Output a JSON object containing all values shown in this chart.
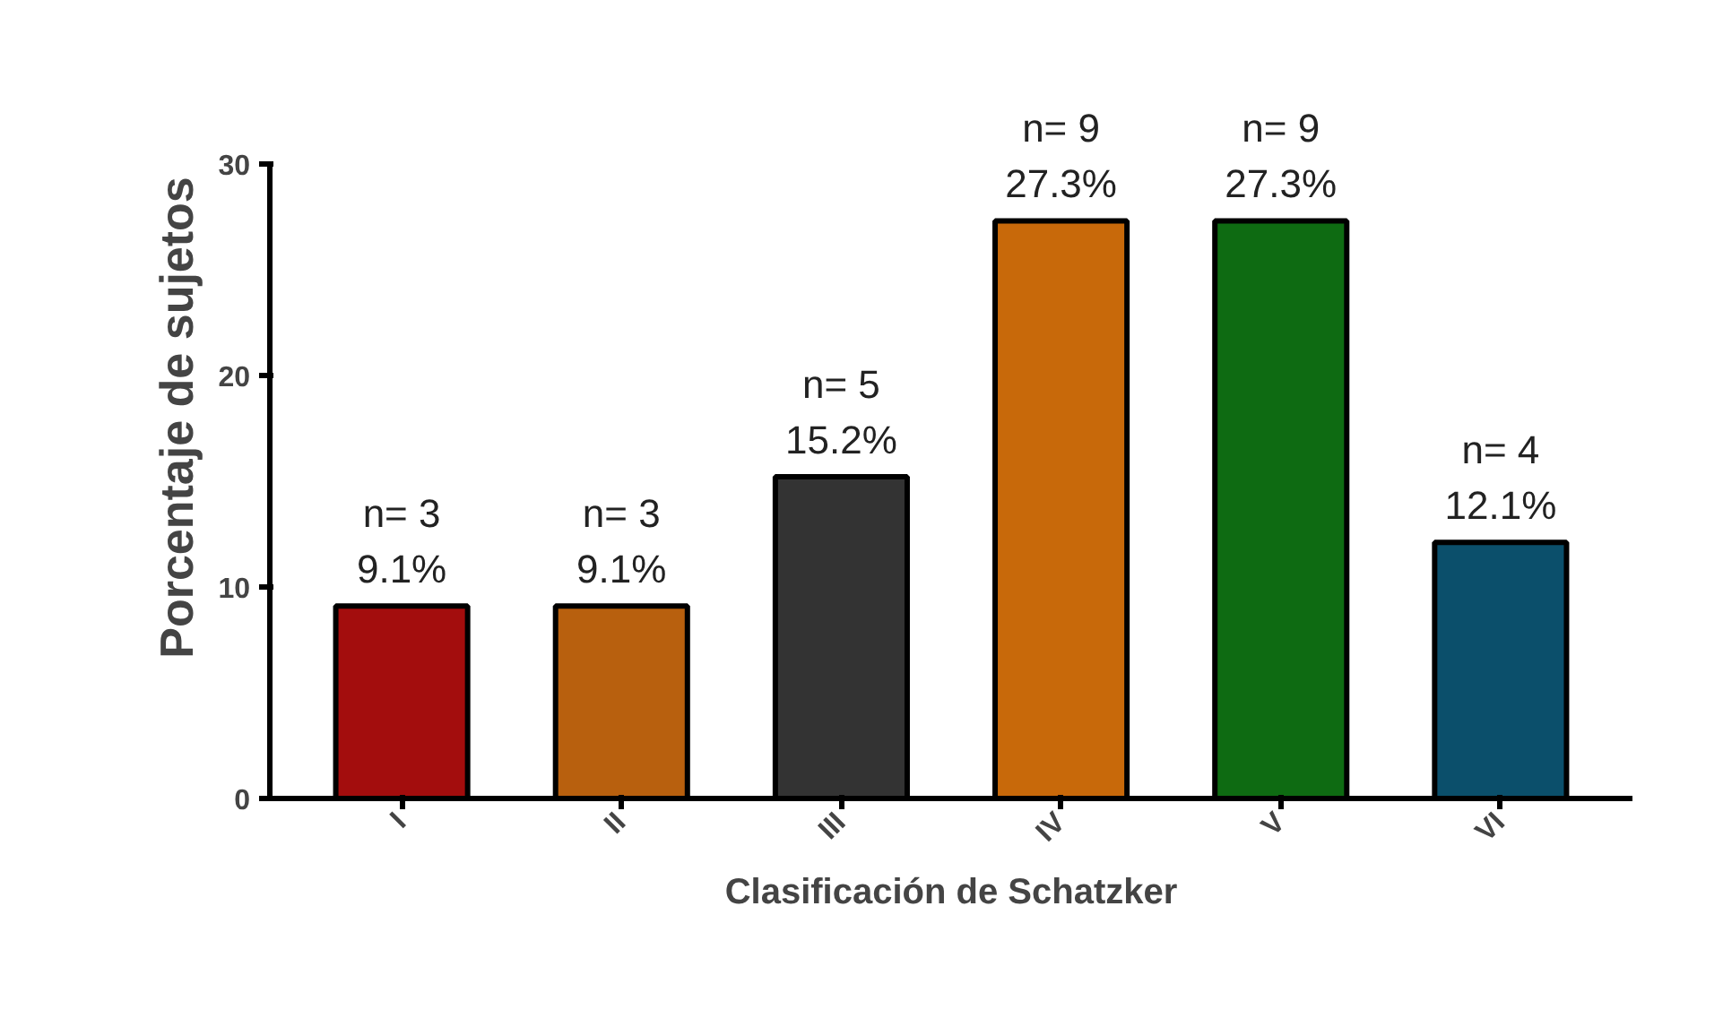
{
  "chart_data": {
    "type": "bar",
    "xlabel": "Clasificación de Schatzker",
    "ylabel": "Porcentaje de sujetos",
    "categories": [
      "I",
      "II",
      "III",
      "IV",
      "V",
      "VI"
    ],
    "values": [
      9.1,
      9.1,
      15.2,
      27.3,
      27.3,
      12.1
    ],
    "colors": [
      "#a30d0d",
      "#b8600e",
      "#333333",
      "#c8690a",
      "#0e6b12",
      "#0b4f6b"
    ],
    "value_labels": [
      "n= 3\n9.1%",
      "n= 3\n9.1%",
      "n= 5\n15.2%",
      "n= 9\n27.3%",
      "n= 9\n27.3%",
      "n= 4\n12.1%"
    ],
    "ylim": [
      0,
      30
    ],
    "yticks": [
      0,
      10,
      20,
      30
    ],
    "grid": false
  }
}
